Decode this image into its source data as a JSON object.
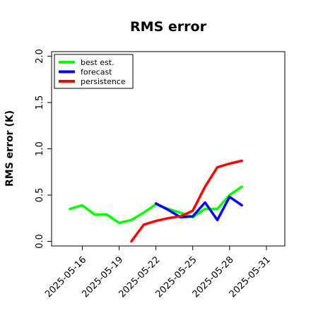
{
  "chart_data": {
    "type": "line",
    "title": "RMS error",
    "xlabel": "",
    "ylabel": "RMS error (K)",
    "ylim": [
      -0.05,
      2.05
    ],
    "yticks": [
      0.0,
      0.5,
      1.0,
      1.5,
      2.0
    ],
    "ytick_labels": [
      "0.0",
      "0.5",
      "1.0",
      "1.5",
      "2.0"
    ],
    "xlim": [
      "2025-05-13T12:00",
      "2025-06-01T12:00"
    ],
    "xtick_labels": [
      {
        "date": "2025-05-16",
        "label": "2025-05-16",
        "color": "#000000"
      },
      {
        "date": "2025-05-19",
        "label": "2025-05-19",
        "color": "#000000"
      },
      {
        "date": "2025-05-22",
        "label": "2025-05-22",
        "color": "#008000"
      },
      {
        "date": "2025-05-25",
        "label": "2025-05-25",
        "color": "#000000"
      },
      {
        "date": "2025-05-28",
        "label": "2025-05-28",
        "color": "#000000"
      },
      {
        "date": "2025-05-31",
        "label": "2025-05-31",
        "color": "#000000"
      }
    ],
    "grid": false,
    "legend_position": "top-left",
    "series": [
      {
        "name": "best est.",
        "color": "#00ff00",
        "x": [
          "2025-05-15",
          "2025-05-16",
          "2025-05-17",
          "2025-05-18",
          "2025-05-19",
          "2025-05-20",
          "2025-05-21",
          "2025-05-22",
          "2025-05-23",
          "2025-05-24",
          "2025-05-25",
          "2025-05-26",
          "2025-05-27",
          "2025-05-28",
          "2025-05-29"
        ],
        "y": [
          0.35,
          0.39,
          0.29,
          0.29,
          0.2,
          0.23,
          0.31,
          0.4,
          0.35,
          0.31,
          0.26,
          0.35,
          0.35,
          0.5,
          0.59
        ]
      },
      {
        "name": "forecast",
        "color": "#0000ff",
        "x": [
          "2025-05-22",
          "2025-05-23",
          "2025-05-24",
          "2025-05-25",
          "2025-05-26",
          "2025-05-27",
          "2025-05-28",
          "2025-05-29"
        ],
        "y": [
          0.41,
          0.34,
          0.26,
          0.27,
          0.42,
          0.23,
          0.48,
          0.39
        ]
      },
      {
        "name": "persistence",
        "color": "#ff0000",
        "x": [
          "2025-05-20",
          "2025-05-21",
          "2025-05-22",
          "2025-05-23",
          "2025-05-24",
          "2025-05-25",
          "2025-05-26",
          "2025-05-27",
          "2025-05-28",
          "2025-05-29"
        ],
        "y": [
          0.0,
          0.18,
          0.22,
          0.25,
          0.27,
          0.33,
          0.59,
          0.8,
          0.84,
          0.87
        ]
      }
    ]
  }
}
